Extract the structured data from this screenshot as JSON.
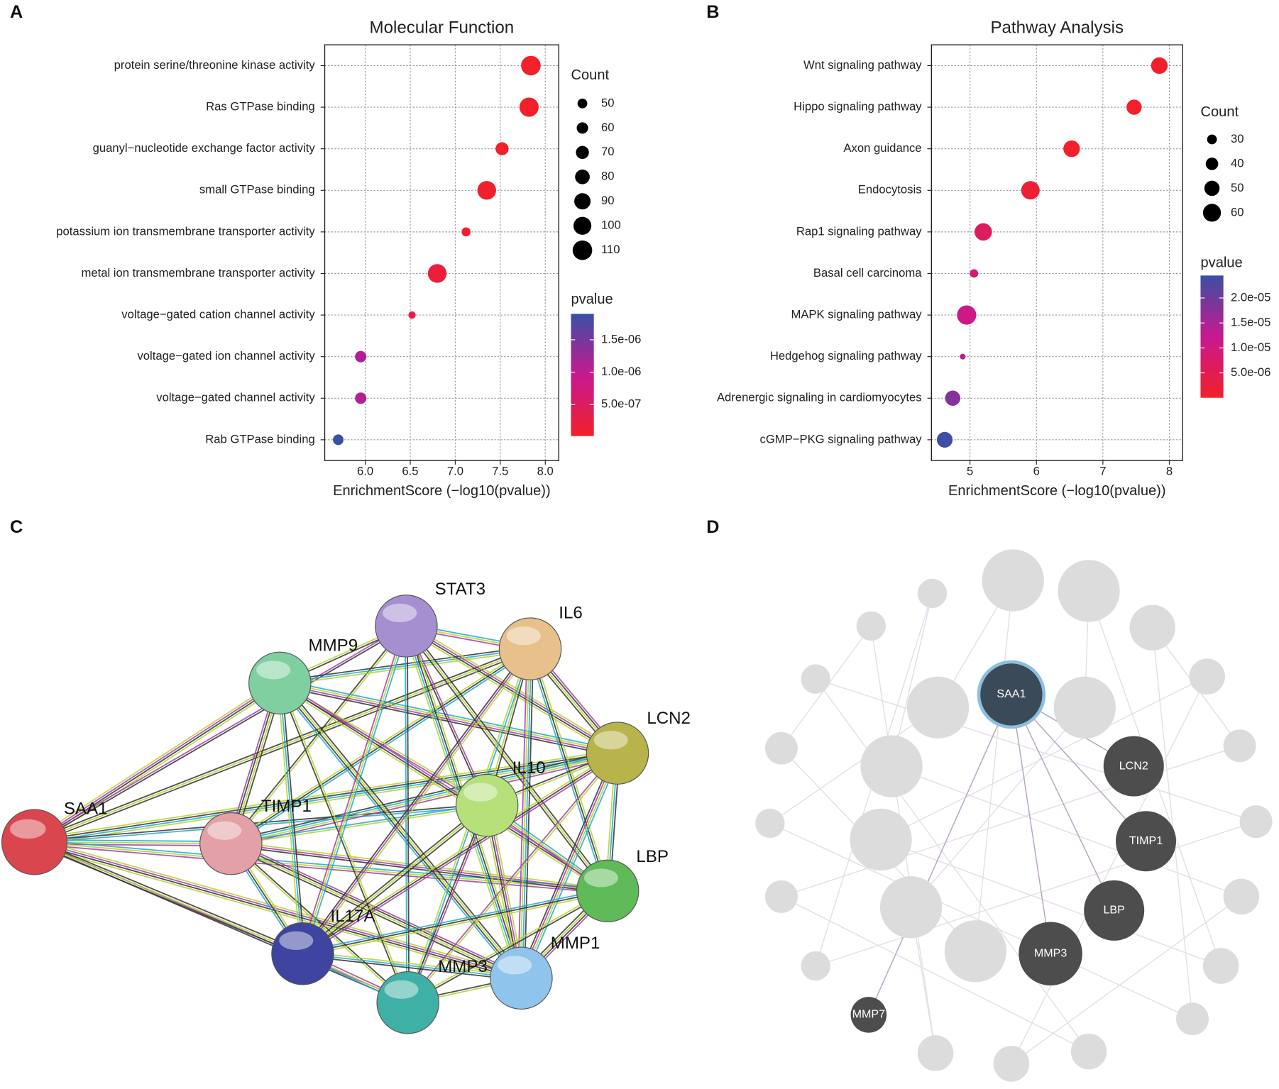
{
  "panels": [
    "A",
    "B",
    "C",
    "D"
  ],
  "chart_data": [
    {
      "type": "scatter",
      "title": "Molecular Function",
      "xlabel": "EnrichmentScore (−log10(pvalue))",
      "categories": [
        "protein serine/threonine kinase activity",
        "Ras GTPase binding",
        "guanyl−nucleotide exchange factor activity",
        "small GTPase binding",
        "potassium ion transmembrane transporter activity",
        "metal ion transmembrane transporter activity",
        "voltage−gated cation channel activity",
        "voltage−gated ion channel activity",
        "voltage−gated channel activity",
        "Rab GTPase binding"
      ],
      "values": [
        7.84,
        7.82,
        7.52,
        7.35,
        7.12,
        6.8,
        6.52,
        5.95,
        5.95,
        5.7
      ],
      "counts": [
        110,
        108,
        70,
        105,
        45,
        105,
        35,
        60,
        60,
        55
      ],
      "pvalues": [
        1.4e-08,
        1.5e-08,
        3e-08,
        4.5e-08,
        7.6e-08,
        1.6e-07,
        3e-07,
        1.1e-06,
        1.1e-06,
        1.9e-06
      ],
      "xlim": [
        5.55,
        8.15
      ],
      "xticks": [
        {
          "value": 6,
          "label": "6.0"
        },
        {
          "value": 6.5,
          "label": "6.5"
        },
        {
          "value": 7,
          "label": "7.0"
        },
        {
          "value": 7.5,
          "label": "7.5"
        },
        {
          "value": 8,
          "label": "8.0"
        }
      ],
      "grid": true,
      "size_legend": {
        "title": "Count",
        "values": [
          50,
          60,
          70,
          80,
          90,
          100,
          110
        ]
      },
      "color_legend": {
        "title": "pvalue",
        "lim": [
          1.4e-08,
          1.9e-06
        ],
        "colors": [
          "#f2202a",
          "#c81890",
          "#3a4fa5"
        ],
        "ticks": [
          {
            "value": 5e-07,
            "label": "5.0e-07"
          },
          {
            "value": 1e-06,
            "label": "1.0e-06"
          },
          {
            "value": 1.5e-06,
            "label": "1.5e-06"
          }
        ]
      }
    },
    {
      "type": "scatter",
      "title": "Pathway Analysis",
      "xlabel": "EnrichmentScore (−log10(pvalue))",
      "categories": [
        "Wnt signaling pathway",
        "Hippo signaling pathway",
        "Axon guidance",
        "Endocytosis",
        "Rap1 signaling pathway",
        "Basal cell carcinoma",
        "MAPK signaling pathway",
        "Hedgehog signaling pathway",
        "Adrenergic signaling in cardiomyocytes",
        "cGMP−PKG signaling pathway"
      ],
      "values": [
        7.85,
        7.47,
        6.53,
        5.91,
        5.2,
        5.06,
        4.95,
        4.89,
        4.74,
        4.62
      ],
      "counts": [
        55,
        50,
        55,
        62,
        58,
        25,
        65,
        15,
        50,
        52
      ],
      "pvalues": [
        1.4e-08,
        3.4e-08,
        3e-07,
        1.2e-06,
        6.3e-06,
        8.7e-06,
        1.1e-05,
        1.3e-05,
        1.8e-05,
        2.4e-05
      ],
      "xlim": [
        4.42,
        8.2
      ],
      "xticks": [
        5,
        6,
        7,
        8
      ],
      "grid": true,
      "size_legend": {
        "title": "Count",
        "values": [
          30,
          40,
          50,
          60
        ]
      },
      "color_legend": {
        "title": "pvalue",
        "lim": [
          1.4e-08,
          2.45e-05
        ],
        "colors": [
          "#f2202a",
          "#c81890",
          "#3a4fa5"
        ],
        "ticks": [
          {
            "value": 5e-06,
            "label": "5.0e-06"
          },
          {
            "value": 1e-05,
            "label": "1.0e-05"
          },
          {
            "value": 1.5e-05,
            "label": "1.5e-05"
          },
          {
            "value": 2e-05,
            "label": "2.0e-05"
          }
        ]
      }
    }
  ],
  "networks": [
    {
      "nodes": [
        "SAA1",
        "TIMP1",
        "MMP9",
        "STAT3",
        "IL6",
        "LCN2",
        "IL10",
        "LBP",
        "MMP1",
        "MMP3",
        "IL17A"
      ]
    },
    {
      "nodes": [
        "SAA1",
        "LCN2",
        "TIMP1",
        "LBP",
        "MMP3",
        "MMP7"
      ]
    }
  ]
}
